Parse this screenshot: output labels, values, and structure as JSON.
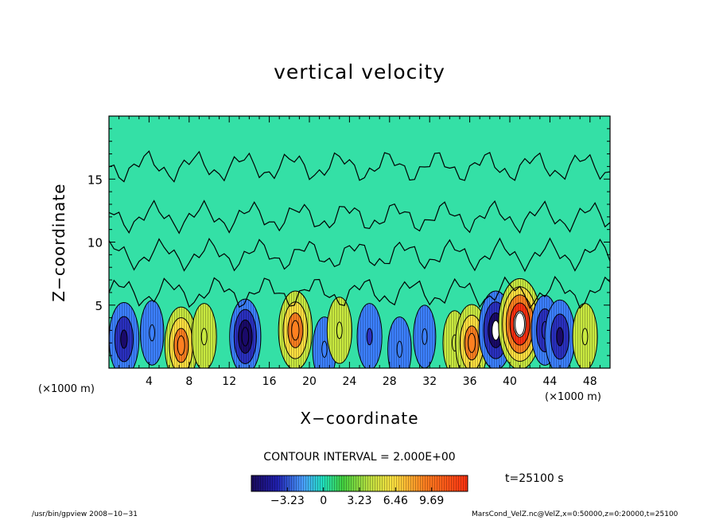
{
  "chart_data": {
    "type": "heatmap",
    "title": "vertical velocity",
    "xlabel": "X−coordinate",
    "ylabel": "Z−coordinate",
    "x_unit_left": "(×1000 m)",
    "x_unit_right": "(×1000 m)",
    "xlim": [
      0,
      50
    ],
    "ylim": [
      0,
      20
    ],
    "x_ticks": [
      "4",
      "8",
      "12",
      "16",
      "20",
      "24",
      "28",
      "32",
      "36",
      "40",
      "44",
      "48"
    ],
    "y_ticks": [
      "5",
      "10",
      "15"
    ],
    "contour_interval": "CONTOUR INTERVAL = 2.000E+00",
    "colorbar_ticks": [
      "−3.23",
      "0",
      "3.23",
      "6.46",
      "9.69"
    ],
    "colorbar_range": [
      -6.46,
      12.92
    ],
    "time_label": "t=25100 s",
    "field_features": [
      {
        "x": 1.5,
        "z": 2.3,
        "w": -5.5
      },
      {
        "x": 4.3,
        "z": 2.8,
        "w": -3.0
      },
      {
        "x": 7.2,
        "z": 1.8,
        "w": 6.5
      },
      {
        "x": 9.5,
        "z": 2.5,
        "w": 3.5
      },
      {
        "x": 13.6,
        "z": 2.5,
        "w": -6.0
      },
      {
        "x": 18.6,
        "z": 3.0,
        "w": 7.0
      },
      {
        "x": 21.5,
        "z": 1.5,
        "w": -3.0
      },
      {
        "x": 23.0,
        "z": 3.0,
        "w": 3.5
      },
      {
        "x": 26.0,
        "z": 2.5,
        "w": -3.5
      },
      {
        "x": 29.0,
        "z": 1.5,
        "w": -3.0
      },
      {
        "x": 31.5,
        "z": 2.5,
        "w": -2.5
      },
      {
        "x": 34.5,
        "z": 2.0,
        "w": 3.0
      },
      {
        "x": 36.2,
        "z": 2.0,
        "w": 6.5
      },
      {
        "x": 38.6,
        "z": 3.0,
        "w": -7.0
      },
      {
        "x": 41.0,
        "z": 3.5,
        "w": 10.5
      },
      {
        "x": 43.5,
        "z": 3.0,
        "w": -4.5
      },
      {
        "x": 45.0,
        "z": 2.5,
        "w": -5.5
      },
      {
        "x": 47.5,
        "z": 2.5,
        "w": 3.5
      }
    ]
  },
  "footer": {
    "left": "/usr/bin/gpview   2008−10−31",
    "right": "MarsCond_VelZ.nc@VelZ,x=0:50000,z=0:20000,t=25100"
  }
}
